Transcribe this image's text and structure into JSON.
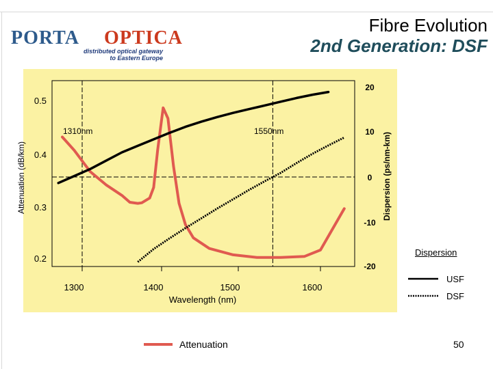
{
  "header": {
    "title_line1": "Fibre Evolution",
    "title_line2": "2nd Generation: DSF",
    "logo_left": "PORTA",
    "logo_right": "OPTICA",
    "logo_tagline_1": "distributed optical gateway",
    "logo_tagline_2": "to Eastern Europe"
  },
  "page_number": "50",
  "colors": {
    "plot_bg": "#FBF2A3",
    "attenuation": "#E05A50",
    "usf": "#000000",
    "dsf": "#000000",
    "title_line2": "#1F4D5B",
    "logo_porta": "#2E5B8C",
    "logo_optica": "#CC3A1E"
  },
  "chart_data": {
    "type": "line",
    "xlabel": "Wavelength (nm)",
    "ylabel_left": "Attenuation (dB/km)",
    "ylabel_right": "Dispersion (ps/nm-km)",
    "x_ticks": [
      "1300",
      "1400",
      "1500",
      "1600"
    ],
    "y_left_ticks": [
      "0.5",
      "0.4",
      "0.3",
      "0.2"
    ],
    "y_right_ticks": [
      "20",
      "10",
      "0",
      "-10",
      "-20"
    ],
    "xlim": [
      1270,
      1650
    ],
    "ylim_left": [
      0.18,
      0.52
    ],
    "ylim_right": [
      -20,
      20
    ],
    "reference_lines": [
      {
        "axis": "x",
        "value": 1310,
        "label": "1310nm"
      },
      {
        "axis": "x",
        "value": 1550,
        "label": "1550nm"
      },
      {
        "axis": "y_right",
        "value": 0
      }
    ],
    "series": [
      {
        "name": "Attenuation",
        "axis": "left",
        "style": "solid",
        "x": [
          1285,
          1300,
          1320,
          1340,
          1360,
          1370,
          1380,
          1385,
          1395,
          1400,
          1405,
          1412,
          1418,
          1425,
          1432,
          1440,
          1450,
          1470,
          1500,
          1530,
          1560,
          1590,
          1610,
          1640
        ],
        "y": [
          0.435,
          0.41,
          0.37,
          0.345,
          0.325,
          0.312,
          0.31,
          0.311,
          0.32,
          0.34,
          0.41,
          0.49,
          0.47,
          0.38,
          0.31,
          0.27,
          0.245,
          0.225,
          0.213,
          0.208,
          0.208,
          0.21,
          0.222,
          0.3
        ]
      },
      {
        "name": "USF",
        "axis": "right",
        "style": "solid",
        "x": [
          1280,
          1300,
          1320,
          1340,
          1360,
          1380,
          1400,
          1420,
          1440,
          1460,
          1480,
          1500,
          1520,
          1540,
          1560,
          1580,
          1600,
          1620
        ],
        "y": [
          -1.3,
          0.2,
          1.7,
          3.5,
          5.3,
          6.7,
          8.1,
          9.5,
          10.8,
          11.9,
          12.9,
          13.8,
          14.6,
          15.4,
          16.2,
          17.0,
          17.7,
          18.3
        ]
      },
      {
        "name": "DSF",
        "axis": "right",
        "style": "dotted",
        "x": [
          1380,
          1400,
          1420,
          1440,
          1460,
          1480,
          1500,
          1520,
          1540,
          1560,
          1580,
          1600,
          1620,
          1640
        ],
        "y": [
          -18.3,
          -15.5,
          -13.2,
          -11.0,
          -8.9,
          -6.8,
          -4.8,
          -2.8,
          -0.9,
          0.9,
          3.0,
          5.0,
          6.8,
          8.5
        ]
      }
    ],
    "legend": {
      "title": "Dispersion",
      "entries": [
        "USF",
        "DSF",
        "Attenuation"
      ],
      "placement": "bottom-right"
    }
  }
}
